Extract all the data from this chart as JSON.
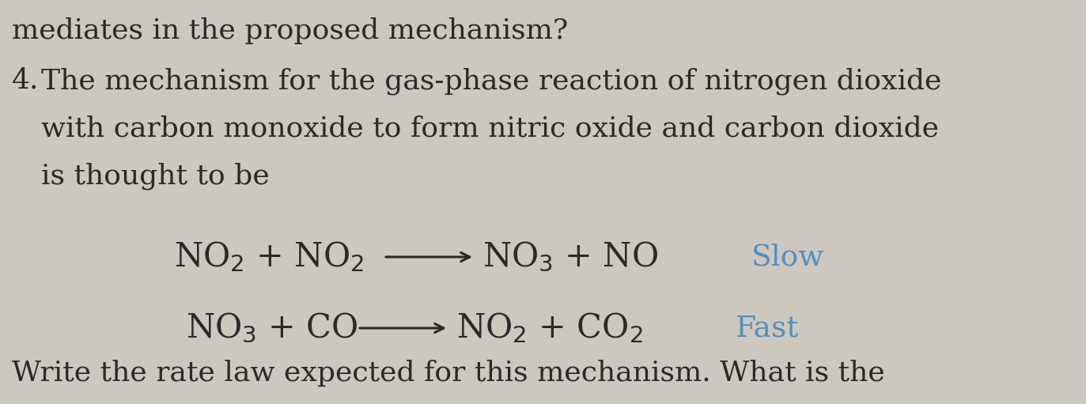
{
  "background_color": "#ccc8c0",
  "top_text": "mediates in the proposed mechanism?",
  "paragraph_number": "4.",
  "paragraph_line1": "The mechanism for the gas-phase reaction of nitrogen dioxide",
  "paragraph_line2": "with carbon monoxide to form nitric oxide and carbon dioxide",
  "paragraph_line3": "is thought to be",
  "eq1_left": "NO$_2$ + NO$_2$",
  "eq1_right": "NO$_3$ + NO",
  "eq1_label": "Slow",
  "eq2_left": "NO$_3$ + CO",
  "eq2_right": "NO$_2$ + CO$_2$",
  "eq2_label": "Fast",
  "bottom_text": "Write the rate law expected for this mechanism. What is the",
  "text_color": "#2a2a2a",
  "blue_color": "#5a8db8",
  "body_fontsize": 26,
  "eq_fontsize": 30,
  "label_fontsize": 27
}
